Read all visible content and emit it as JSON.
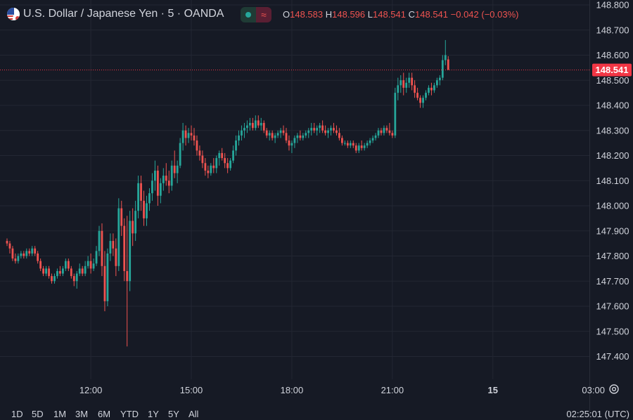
{
  "header": {
    "symbol_title": "U.S. Dollar / Japanese Yen · 5 · OANDA",
    "flag_icon": "usd-jpy-flag-icon",
    "status_pill_icon": "market-open-dot-icon",
    "status_pill_symbol": "≈",
    "ohlc": {
      "open_label": "O",
      "open": "148.583",
      "high_label": "H",
      "high": "148.596",
      "low_label": "L",
      "low": "148.541",
      "close_label": "C",
      "close": "148.541",
      "change": "−0.042 (−0.03%)"
    }
  },
  "colors": {
    "background": "#161a25",
    "grid": "#232733",
    "up": "#26a69a",
    "down": "#ef5350",
    "text": "#d1d4dc",
    "price_tag": "#f23645"
  },
  "chart_data": {
    "type": "candlestick",
    "title": "U.S. Dollar / Japanese Yen · 5 · OANDA",
    "xlabel": "",
    "ylabel": "",
    "y_ticks": [
      "148.800",
      "148.700",
      "148.600",
      "148.500",
      "148.400",
      "148.300",
      "148.200",
      "148.100",
      "148.000",
      "147.900",
      "147.800",
      "147.700",
      "147.600",
      "147.500",
      "147.400"
    ],
    "ylim": [
      147.35,
      148.8
    ],
    "x_ticks": [
      {
        "label": "12:00",
        "bar": 30
      },
      {
        "label": "15:00",
        "bar": 66
      },
      {
        "label": "18:00",
        "bar": 102
      },
      {
        "label": "21:00",
        "bar": 138
      },
      {
        "label": "15",
        "bar": 174,
        "bold": true
      },
      {
        "label": "03:00",
        "bar": 210
      }
    ],
    "last_price": "148.541",
    "grid": true,
    "candles": [
      [
        147.86,
        147.87,
        147.84,
        147.85
      ],
      [
        147.85,
        147.86,
        147.81,
        147.83
      ],
      [
        147.83,
        147.84,
        147.78,
        147.79
      ],
      [
        147.79,
        147.81,
        147.77,
        147.78
      ],
      [
        147.78,
        147.81,
        147.77,
        147.8
      ],
      [
        147.8,
        147.82,
        147.79,
        147.81
      ],
      [
        147.81,
        147.82,
        147.79,
        147.8
      ],
      [
        147.8,
        147.83,
        147.79,
        147.82
      ],
      [
        147.82,
        147.83,
        147.8,
        147.81
      ],
      [
        147.81,
        147.84,
        147.8,
        147.83
      ],
      [
        147.83,
        147.84,
        147.8,
        147.81
      ],
      [
        147.81,
        147.82,
        147.77,
        147.78
      ],
      [
        147.78,
        147.79,
        147.74,
        147.75
      ],
      [
        147.75,
        147.76,
        147.72,
        147.73
      ],
      [
        147.73,
        147.76,
        147.72,
        147.75
      ],
      [
        147.75,
        147.76,
        147.71,
        147.72
      ],
      [
        147.72,
        147.73,
        147.69,
        147.7
      ],
      [
        147.7,
        147.73,
        147.69,
        147.72
      ],
      [
        147.72,
        147.75,
        147.71,
        147.74
      ],
      [
        147.74,
        147.76,
        147.72,
        147.73
      ],
      [
        147.73,
        147.76,
        147.72,
        147.75
      ],
      [
        147.75,
        147.79,
        147.74,
        147.78
      ],
      [
        147.78,
        147.79,
        147.74,
        147.75
      ],
      [
        147.75,
        147.76,
        147.71,
        147.72
      ],
      [
        147.72,
        147.73,
        147.68,
        147.7
      ],
      [
        147.7,
        147.74,
        147.67,
        147.73
      ],
      [
        147.73,
        147.77,
        147.72,
        147.75
      ],
      [
        147.75,
        147.76,
        147.72,
        147.73
      ],
      [
        147.73,
        147.78,
        147.72,
        147.76
      ],
      [
        147.76,
        147.8,
        147.75,
        147.78
      ],
      [
        147.78,
        147.81,
        147.73,
        147.75
      ],
      [
        147.75,
        147.79,
        147.74,
        147.77
      ],
      [
        147.77,
        147.84,
        147.76,
        147.82
      ],
      [
        147.82,
        147.92,
        147.8,
        147.9
      ],
      [
        147.9,
        147.93,
        147.72,
        147.76
      ],
      [
        147.76,
        147.82,
        147.58,
        147.62
      ],
      [
        147.62,
        147.83,
        147.6,
        147.81
      ],
      [
        147.81,
        147.89,
        147.78,
        147.86
      ],
      [
        147.86,
        147.89,
        147.8,
        147.83
      ],
      [
        147.83,
        147.87,
        147.72,
        147.76
      ],
      [
        147.76,
        148.03,
        147.74,
        147.99
      ],
      [
        147.99,
        148.02,
        147.88,
        147.92
      ],
      [
        147.92,
        147.95,
        147.7,
        147.74
      ],
      [
        147.74,
        147.96,
        147.44,
        147.7
      ],
      [
        147.7,
        147.98,
        147.66,
        147.94
      ],
      [
        147.94,
        147.99,
        147.84,
        147.89
      ],
      [
        147.89,
        148.02,
        147.86,
        147.98
      ],
      [
        147.98,
        148.12,
        147.95,
        148.09
      ],
      [
        148.09,
        148.12,
        147.98,
        148.02
      ],
      [
        148.02,
        148.06,
        147.92,
        147.95
      ],
      [
        147.95,
        148.04,
        147.92,
        148.01
      ],
      [
        148.01,
        148.07,
        147.98,
        148.05
      ],
      [
        148.05,
        148.13,
        148.02,
        148.1
      ],
      [
        148.1,
        148.18,
        148.06,
        148.14
      ],
      [
        148.14,
        148.16,
        148.0,
        148.04
      ],
      [
        148.04,
        148.11,
        148.01,
        148.09
      ],
      [
        148.09,
        148.15,
        148.06,
        148.12
      ],
      [
        148.12,
        148.17,
        148.08,
        148.1
      ],
      [
        148.1,
        148.14,
        148.05,
        148.08
      ],
      [
        148.08,
        148.18,
        148.06,
        148.16
      ],
      [
        148.16,
        148.22,
        148.11,
        148.13
      ],
      [
        148.13,
        148.18,
        148.09,
        148.16
      ],
      [
        148.16,
        148.27,
        148.15,
        148.25
      ],
      [
        148.25,
        148.33,
        148.22,
        148.3
      ],
      [
        148.3,
        148.32,
        148.24,
        148.27
      ],
      [
        148.27,
        148.31,
        148.25,
        148.29
      ],
      [
        148.29,
        148.32,
        148.26,
        148.28
      ],
      [
        148.28,
        148.31,
        148.24,
        148.26
      ],
      [
        148.26,
        148.28,
        148.2,
        148.22
      ],
      [
        148.22,
        148.24,
        148.18,
        148.2
      ],
      [
        148.2,
        148.22,
        148.15,
        148.17
      ],
      [
        148.17,
        148.19,
        148.12,
        148.14
      ],
      [
        148.14,
        148.16,
        148.11,
        148.13
      ],
      [
        148.13,
        148.17,
        148.12,
        148.16
      ],
      [
        148.16,
        148.19,
        148.13,
        148.15
      ],
      [
        148.15,
        148.2,
        148.13,
        148.19
      ],
      [
        148.19,
        148.22,
        148.16,
        148.21
      ],
      [
        148.21,
        148.23,
        148.18,
        148.19
      ],
      [
        148.19,
        148.21,
        148.15,
        148.17
      ],
      [
        148.17,
        148.19,
        148.13,
        148.15
      ],
      [
        148.15,
        148.19,
        148.14,
        148.18
      ],
      [
        148.18,
        148.24,
        148.17,
        148.22
      ],
      [
        148.22,
        148.28,
        148.2,
        148.26
      ],
      [
        148.26,
        148.3,
        148.24,
        148.28
      ],
      [
        148.28,
        148.32,
        148.26,
        148.3
      ],
      [
        148.3,
        148.33,
        148.27,
        148.31
      ],
      [
        148.31,
        148.34,
        148.29,
        148.32
      ],
      [
        148.32,
        148.35,
        148.3,
        148.33
      ],
      [
        148.33,
        148.35,
        148.3,
        148.31
      ],
      [
        148.31,
        148.36,
        148.3,
        148.34
      ],
      [
        148.34,
        148.36,
        148.31,
        148.32
      ],
      [
        148.32,
        148.35,
        148.3,
        148.33
      ],
      [
        148.33,
        148.34,
        148.29,
        148.3
      ],
      [
        148.3,
        148.31,
        148.27,
        148.28
      ],
      [
        148.28,
        148.3,
        148.26,
        148.29
      ],
      [
        148.29,
        148.3,
        148.26,
        148.27
      ],
      [
        148.27,
        148.29,
        148.25,
        148.28
      ],
      [
        148.28,
        148.3,
        148.27,
        148.29
      ],
      [
        148.29,
        148.31,
        148.27,
        148.3
      ],
      [
        148.3,
        148.32,
        148.28,
        148.29
      ],
      [
        148.29,
        148.31,
        148.25,
        148.26
      ],
      [
        148.26,
        148.28,
        148.22,
        148.24
      ],
      [
        148.24,
        148.26,
        148.21,
        148.25
      ],
      [
        148.25,
        148.28,
        148.23,
        148.27
      ],
      [
        148.27,
        148.29,
        148.25,
        148.28
      ],
      [
        148.28,
        148.3,
        148.26,
        148.27
      ],
      [
        148.27,
        148.29,
        148.26,
        148.28
      ],
      [
        148.28,
        148.3,
        148.27,
        148.29
      ],
      [
        148.29,
        148.31,
        148.27,
        148.3
      ],
      [
        148.3,
        148.33,
        148.28,
        148.31
      ],
      [
        148.31,
        148.33,
        148.29,
        148.3
      ],
      [
        148.3,
        148.32,
        148.28,
        148.31
      ],
      [
        148.31,
        148.33,
        148.29,
        148.32
      ],
      [
        148.32,
        148.34,
        148.29,
        148.3
      ],
      [
        148.3,
        148.32,
        148.28,
        148.29
      ],
      [
        148.29,
        148.31,
        148.27,
        148.3
      ],
      [
        148.3,
        148.32,
        148.28,
        148.31
      ],
      [
        148.31,
        148.33,
        148.29,
        148.3
      ],
      [
        148.3,
        148.32,
        148.28,
        148.29
      ],
      [
        148.29,
        148.31,
        148.26,
        148.27
      ],
      [
        148.27,
        148.28,
        148.24,
        148.25
      ],
      [
        148.25,
        148.26,
        148.24,
        148.25
      ],
      [
        148.25,
        148.26,
        148.23,
        148.24
      ],
      [
        148.24,
        148.26,
        148.23,
        148.25
      ],
      [
        148.25,
        148.26,
        148.23,
        148.24
      ],
      [
        148.24,
        148.25,
        148.21,
        148.22
      ],
      [
        148.22,
        148.25,
        148.21,
        148.24
      ],
      [
        148.24,
        148.26,
        148.22,
        148.23
      ],
      [
        148.23,
        148.25,
        148.22,
        148.24
      ],
      [
        148.24,
        148.26,
        148.23,
        148.25
      ],
      [
        148.25,
        148.27,
        148.24,
        148.26
      ],
      [
        148.26,
        148.28,
        148.25,
        148.27
      ],
      [
        148.27,
        148.29,
        148.26,
        148.28
      ],
      [
        148.28,
        148.31,
        148.27,
        148.3
      ],
      [
        148.3,
        148.31,
        148.28,
        148.29
      ],
      [
        148.29,
        148.32,
        148.28,
        148.31
      ],
      [
        148.31,
        148.32,
        148.29,
        148.3
      ],
      [
        148.3,
        148.33,
        148.28,
        148.29
      ],
      [
        148.29,
        148.3,
        148.27,
        148.28
      ],
      [
        148.28,
        148.47,
        148.27,
        148.45
      ],
      [
        148.45,
        148.51,
        148.42,
        148.48
      ],
      [
        148.48,
        148.52,
        148.45,
        148.5
      ],
      [
        148.5,
        148.53,
        148.44,
        148.47
      ],
      [
        148.47,
        148.51,
        148.45,
        148.49
      ],
      [
        148.49,
        148.53,
        148.47,
        148.51
      ],
      [
        148.51,
        148.53,
        148.46,
        148.48
      ],
      [
        148.48,
        148.5,
        148.43,
        148.45
      ],
      [
        148.45,
        148.47,
        148.42,
        148.43
      ],
      [
        148.43,
        148.44,
        148.39,
        148.41
      ],
      [
        148.41,
        148.44,
        148.39,
        148.43
      ],
      [
        148.43,
        148.46,
        148.42,
        148.45
      ],
      [
        148.45,
        148.48,
        148.44,
        148.47
      ],
      [
        148.47,
        148.49,
        148.44,
        148.46
      ],
      [
        148.46,
        148.49,
        148.45,
        148.48
      ],
      [
        148.48,
        148.51,
        148.47,
        148.5
      ],
      [
        148.5,
        148.52,
        148.48,
        148.51
      ],
      [
        148.51,
        148.6,
        148.5,
        148.58
      ],
      [
        148.58,
        148.66,
        148.56,
        148.6
      ],
      [
        148.583,
        148.596,
        148.541,
        148.541
      ]
    ]
  },
  "settings_icon": "gear-icon",
  "bottom_bar": {
    "ranges": [
      "1D",
      "5D",
      "1M",
      "3M",
      "6M",
      "YTD",
      "1Y",
      "5Y",
      "All"
    ],
    "clock": "02:25:01 (UTC)"
  }
}
